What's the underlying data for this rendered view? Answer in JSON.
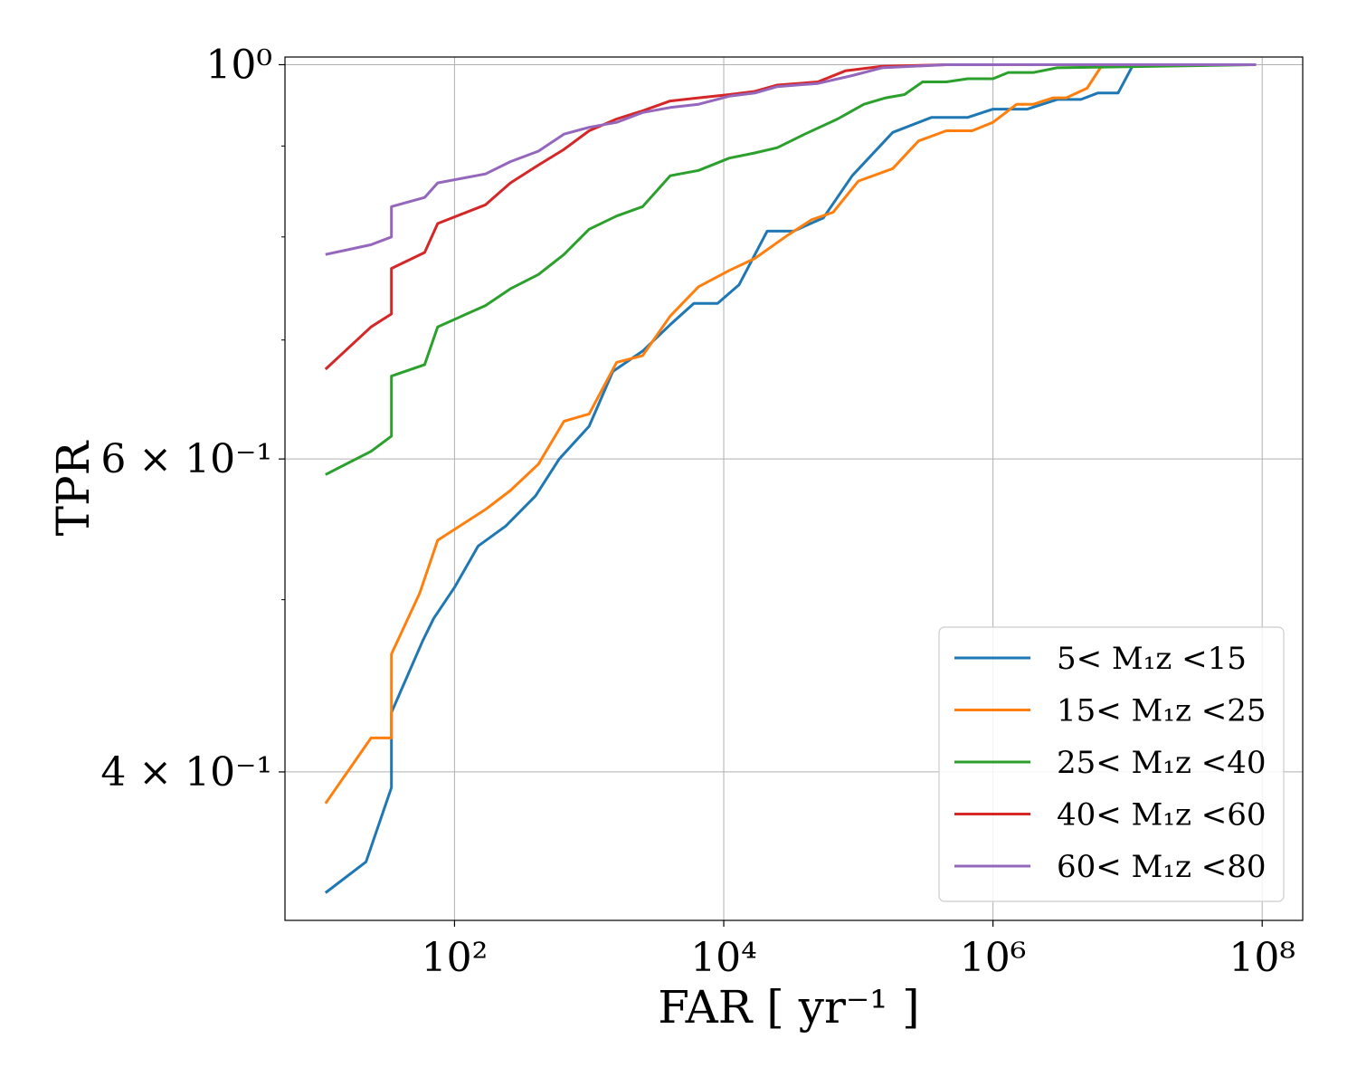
{
  "chart_data": {
    "type": "line",
    "title": "",
    "xlabel": "FAR [ yr⁻¹ ]",
    "ylabel": "TPR",
    "xscale": "log",
    "yscale": "log",
    "xlim": [
      5.5,
      200000000
    ],
    "ylim": [
      0.33,
      1.01
    ],
    "grid": true,
    "legend_position": "lower-right",
    "x_ticks": [
      {
        "value": 100,
        "label": "10²"
      },
      {
        "value": 10000,
        "label": "10⁴"
      },
      {
        "value": 1000000,
        "label": "10⁶"
      },
      {
        "value": 100000000,
        "label": "10⁸"
      }
    ],
    "y_ticks": [
      {
        "value": 0.4,
        "label": "4 × 10⁻¹"
      },
      {
        "value": 0.6,
        "label": "6 × 10⁻¹"
      },
      {
        "value": 1.0,
        "label": "10⁰"
      }
    ],
    "y_minor_ticks": [
      0.5,
      0.7,
      0.8,
      0.9
    ],
    "series": [
      {
        "name": "5< M₁z <15",
        "color": "#1f77b4",
        "points": [
          [
            11,
            0.342
          ],
          [
            22,
            0.356
          ],
          [
            34,
            0.392
          ],
          [
            34,
            0.432
          ],
          [
            58,
            0.474
          ],
          [
            70,
            0.488
          ],
          [
            100,
            0.508
          ],
          [
            150,
            0.536
          ],
          [
            240,
            0.55
          ],
          [
            400,
            0.572
          ],
          [
            600,
            0.6
          ],
          [
            1000,
            0.626
          ],
          [
            1500,
            0.672
          ],
          [
            2500,
            0.69
          ],
          [
            4000,
            0.714
          ],
          [
            6000,
            0.734
          ],
          [
            9000,
            0.734
          ],
          [
            13000,
            0.752
          ],
          [
            21000,
            0.806
          ],
          [
            33000,
            0.806
          ],
          [
            55000,
            0.82
          ],
          [
            90000,
            0.866
          ],
          [
            180000,
            0.916
          ],
          [
            350000,
            0.934
          ],
          [
            650000,
            0.934
          ],
          [
            1000000,
            0.944
          ],
          [
            1800000,
            0.944
          ],
          [
            3000000,
            0.956
          ],
          [
            4500000,
            0.956
          ],
          [
            6000000,
            0.964
          ],
          [
            8500000,
            0.964
          ],
          [
            11000000,
            1.0
          ],
          [
            90000000,
            1.0
          ]
        ]
      },
      {
        "name": "15< M₁z <25",
        "color": "#ff7f0e",
        "points": [
          [
            11,
            0.384
          ],
          [
            24,
            0.418
          ],
          [
            34,
            0.418
          ],
          [
            34,
            0.466
          ],
          [
            55,
            0.504
          ],
          [
            75,
            0.54
          ],
          [
            170,
            0.562
          ],
          [
            260,
            0.576
          ],
          [
            420,
            0.596
          ],
          [
            650,
            0.63
          ],
          [
            1000,
            0.636
          ],
          [
            1600,
            0.68
          ],
          [
            2500,
            0.686
          ],
          [
            4000,
            0.722
          ],
          [
            6500,
            0.75
          ],
          [
            11000,
            0.766
          ],
          [
            17000,
            0.778
          ],
          [
            30000,
            0.802
          ],
          [
            45000,
            0.818
          ],
          [
            65000,
            0.826
          ],
          [
            100000,
            0.86
          ],
          [
            180000,
            0.874
          ],
          [
            280000,
            0.906
          ],
          [
            450000,
            0.918
          ],
          [
            700000,
            0.918
          ],
          [
            1000000,
            0.928
          ],
          [
            1500000,
            0.95
          ],
          [
            2000000,
            0.95
          ],
          [
            2800000,
            0.958
          ],
          [
            3500000,
            0.958
          ],
          [
            5000000,
            0.97
          ],
          [
            6500000,
            1.0
          ],
          [
            90000000,
            1.0
          ]
        ]
      },
      {
        "name": "25< M₁z <40",
        "color": "#2ca02c",
        "points": [
          [
            11,
            0.588
          ],
          [
            24,
            0.606
          ],
          [
            34,
            0.618
          ],
          [
            34,
            0.668
          ],
          [
            60,
            0.678
          ],
          [
            75,
            0.712
          ],
          [
            170,
            0.732
          ],
          [
            260,
            0.748
          ],
          [
            420,
            0.762
          ],
          [
            650,
            0.782
          ],
          [
            1000,
            0.808
          ],
          [
            1600,
            0.822
          ],
          [
            2500,
            0.832
          ],
          [
            4000,
            0.866
          ],
          [
            6500,
            0.872
          ],
          [
            11000,
            0.886
          ],
          [
            17000,
            0.892
          ],
          [
            25000,
            0.898
          ],
          [
            40000,
            0.914
          ],
          [
            70000,
            0.932
          ],
          [
            110000,
            0.95
          ],
          [
            160000,
            0.958
          ],
          [
            220000,
            0.962
          ],
          [
            300000,
            0.978
          ],
          [
            450000,
            0.978
          ],
          [
            650000,
            0.982
          ],
          [
            1000000,
            0.982
          ],
          [
            1300000,
            0.99
          ],
          [
            2000000,
            0.99
          ],
          [
            3000000,
            0.996
          ],
          [
            90000000,
            1.0
          ]
        ]
      },
      {
        "name": "40< M₁z <60",
        "color": "#d62728",
        "points": [
          [
            11,
            0.674
          ],
          [
            24,
            0.712
          ],
          [
            34,
            0.724
          ],
          [
            34,
            0.768
          ],
          [
            60,
            0.784
          ],
          [
            75,
            0.814
          ],
          [
            170,
            0.834
          ],
          [
            260,
            0.858
          ],
          [
            420,
            0.878
          ],
          [
            650,
            0.896
          ],
          [
            1000,
            0.918
          ],
          [
            1600,
            0.932
          ],
          [
            2500,
            0.942
          ],
          [
            4000,
            0.954
          ],
          [
            6500,
            0.958
          ],
          [
            11000,
            0.962
          ],
          [
            17000,
            0.966
          ],
          [
            25000,
            0.974
          ],
          [
            50000,
            0.978
          ],
          [
            80000,
            0.992
          ],
          [
            150000,
            0.998
          ],
          [
            450000,
            1.0
          ],
          [
            90000000,
            1.0
          ]
        ]
      },
      {
        "name": "60< M₁z <80",
        "color": "#9467bd",
        "points": [
          [
            11,
            0.782
          ],
          [
            24,
            0.792
          ],
          [
            34,
            0.8
          ],
          [
            34,
            0.832
          ],
          [
            60,
            0.842
          ],
          [
            75,
            0.858
          ],
          [
            170,
            0.868
          ],
          [
            260,
            0.882
          ],
          [
            420,
            0.894
          ],
          [
            650,
            0.914
          ],
          [
            1000,
            0.922
          ],
          [
            1600,
            0.928
          ],
          [
            2500,
            0.94
          ],
          [
            4000,
            0.946
          ],
          [
            6500,
            0.95
          ],
          [
            11000,
            0.96
          ],
          [
            17000,
            0.964
          ],
          [
            25000,
            0.972
          ],
          [
            50000,
            0.976
          ],
          [
            90000,
            0.986
          ],
          [
            150000,
            0.996
          ],
          [
            450000,
            1.0
          ],
          [
            90000000,
            1.0
          ]
        ]
      }
    ]
  }
}
